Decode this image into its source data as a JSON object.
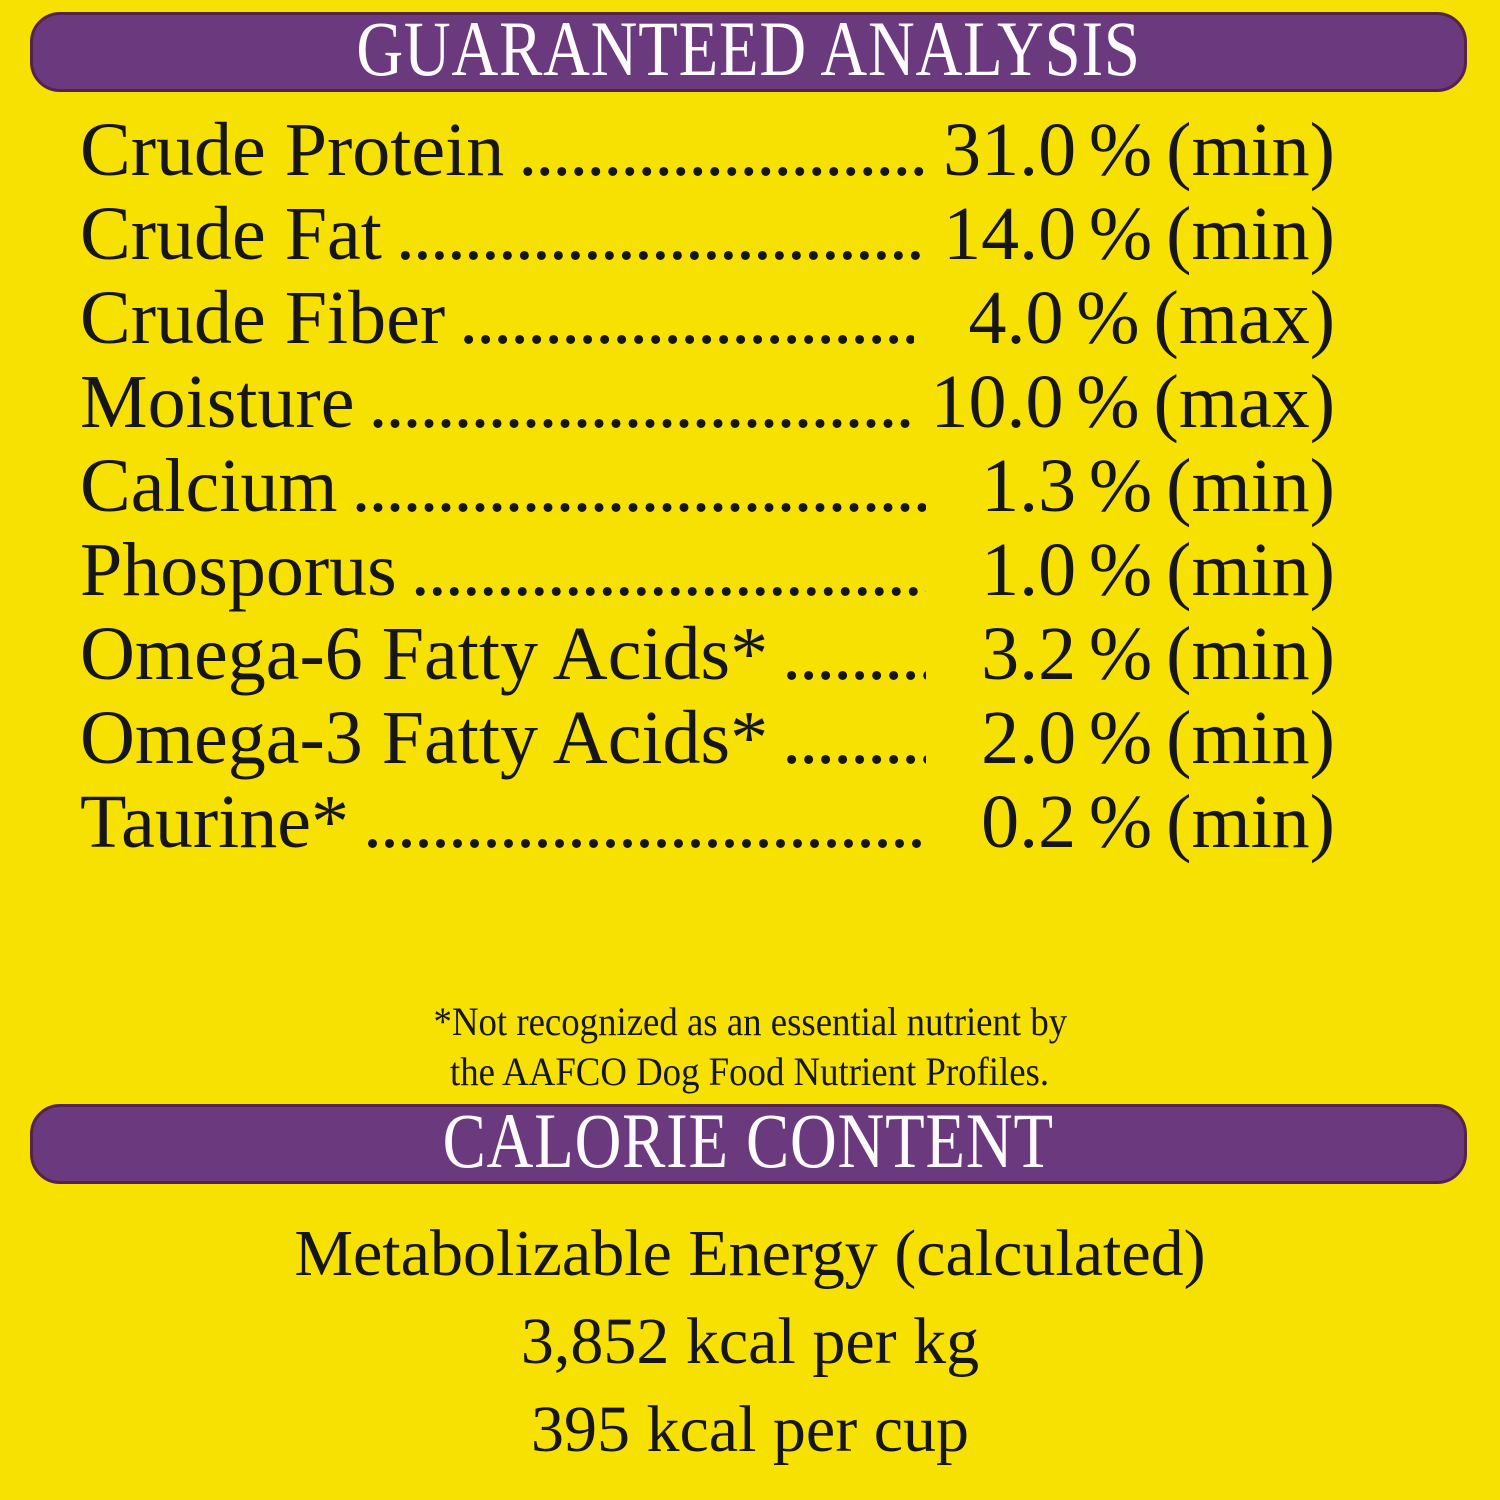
{
  "header": {
    "title": "GUARANTEED ANALYSIS"
  },
  "analysis": {
    "rows": [
      {
        "label": "Crude Protein",
        "value": "31.0",
        "unit": "%",
        "qualifier": "(min)"
      },
      {
        "label": "Crude Fat",
        "value": "14.0",
        "unit": "%",
        "qualifier": "(min)"
      },
      {
        "label": "Crude Fiber",
        "value": "4.0",
        "unit": "%",
        "qualifier": "(max)"
      },
      {
        "label": "Moisture",
        "value": "10.0",
        "unit": "%",
        "qualifier": "(max)"
      },
      {
        "label": "Calcium",
        "value": "1.3",
        "unit": "%",
        "qualifier": "(min)"
      },
      {
        "label": "Phosporus",
        "value": "1.0",
        "unit": "%",
        "qualifier": "(min)"
      },
      {
        "label": "Omega-6 Fatty Acids*",
        "value": "3.2",
        "unit": "%",
        "qualifier": "(min)"
      },
      {
        "label": "Omega-3 Fatty Acids*",
        "value": "2.0",
        "unit": "%",
        "qualifier": "(min)"
      },
      {
        "label": "Taurine*",
        "value": "0.2",
        "unit": "%",
        "qualifier": "(min)"
      }
    ]
  },
  "footnote": {
    "line1": "*Not recognized as an essential nutrient by",
    "line2": "the AAFCO Dog Food Nutrient Profiles."
  },
  "calorie_content": {
    "title": "CALORIE CONTENT",
    "metabolizable_energy": "Metabolizable Energy (calculated)",
    "kcal_per_kg": "3,852 kcal per kg",
    "kcal_per_cup": "395 kcal per cup"
  },
  "colors": {
    "background": "#F6E103",
    "bar_fill": "#6B3A7E",
    "bar_border": "#552348",
    "body_text": "#161616",
    "bar_text": "#FDFBFD"
  }
}
